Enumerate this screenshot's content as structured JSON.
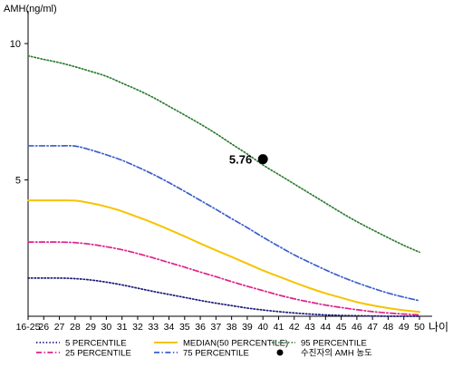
{
  "chart_data": {
    "type": "line",
    "title": "",
    "ylabel": "AMH(ng/ml)",
    "xlabel": "나이",
    "ylim": [
      0,
      11
    ],
    "y_ticks": [
      5,
      10
    ],
    "x_categories": [
      "16-25",
      "26",
      "27",
      "28",
      "29",
      "30",
      "31",
      "32",
      "33",
      "34",
      "35",
      "36",
      "37",
      "38",
      "39",
      "40",
      "41",
      "42",
      "43",
      "44",
      "45",
      "46",
      "47",
      "48",
      "49",
      "50"
    ],
    "series": [
      {
        "name": "95 PERCENTILE",
        "color": "#2e7d32",
        "dash": "dotted",
        "values": [
          9.55,
          9.42,
          9.3,
          9.15,
          8.98,
          8.8,
          8.55,
          8.3,
          8.02,
          7.7,
          7.38,
          7.05,
          6.7,
          6.32,
          5.95,
          5.55,
          5.2,
          4.85,
          4.5,
          4.15,
          3.8,
          3.47,
          3.17,
          2.88,
          2.6,
          2.35
        ]
      },
      {
        "name": "75 PERCENTILE",
        "color": "#3a5fcd",
        "dash": "dashdot",
        "values": [
          6.25,
          6.25,
          6.25,
          6.24,
          6.1,
          5.92,
          5.72,
          5.47,
          5.2,
          4.9,
          4.58,
          4.25,
          3.92,
          3.58,
          3.25,
          2.9,
          2.57,
          2.25,
          1.97,
          1.7,
          1.45,
          1.23,
          1.03,
          0.85,
          0.7,
          0.57
        ]
      },
      {
        "name": "MEDIAN(50 PERCENTILE)",
        "color": "#f5c400",
        "dash": "solid",
        "values": [
          4.25,
          4.25,
          4.25,
          4.24,
          4.15,
          4.02,
          3.85,
          3.64,
          3.42,
          3.18,
          2.93,
          2.67,
          2.42,
          2.18,
          1.93,
          1.68,
          1.46,
          1.24,
          1.03,
          0.84,
          0.68,
          0.52,
          0.4,
          0.3,
          0.22,
          0.16
        ]
      },
      {
        "name": "25 PERCENTILE",
        "color": "#e0218a",
        "dash": "dashdot",
        "values": [
          2.72,
          2.72,
          2.72,
          2.7,
          2.64,
          2.55,
          2.44,
          2.3,
          2.14,
          1.97,
          1.8,
          1.62,
          1.45,
          1.27,
          1.1,
          0.94,
          0.78,
          0.64,
          0.52,
          0.41,
          0.32,
          0.24,
          0.17,
          0.12,
          0.08,
          0.05
        ]
      },
      {
        "name": "5 PERCENTILE",
        "color": "#1a1a7a",
        "dash": "dotted",
        "values": [
          1.4,
          1.4,
          1.4,
          1.38,
          1.33,
          1.25,
          1.15,
          1.03,
          0.91,
          0.8,
          0.69,
          0.58,
          0.48,
          0.39,
          0.3,
          0.23,
          0.17,
          0.12,
          0.08,
          0.05,
          0.03,
          0.02,
          0.01,
          0.0,
          0.0,
          0.0
        ]
      }
    ],
    "patient_point": {
      "x": "40",
      "y": 5.76,
      "label": "5.76",
      "color": "#000000"
    },
    "legend": {
      "placement": "bottom",
      "items": [
        {
          "label": "5 PERCENTILE",
          "color": "#1a1a7a",
          "dash": "dotted",
          "marker": "line"
        },
        {
          "label": "25 PERCENTILE",
          "color": "#e0218a",
          "dash": "dashdot",
          "marker": "line"
        },
        {
          "label": "MEDIAN(50 PERCENTILE)",
          "color": "#f5c400",
          "dash": "solid",
          "marker": "line"
        },
        {
          "label": "75 PERCENTILE",
          "color": "#3a5fcd",
          "dash": "dashdot",
          "marker": "line"
        },
        {
          "label": "95 PERCENTILE",
          "color": "#2e7d32",
          "dash": "dotted",
          "marker": "line"
        },
        {
          "label": "수진자의 AMH 농도",
          "color": "#000000",
          "dash": "none",
          "marker": "dot"
        }
      ]
    },
    "grid": false
  }
}
